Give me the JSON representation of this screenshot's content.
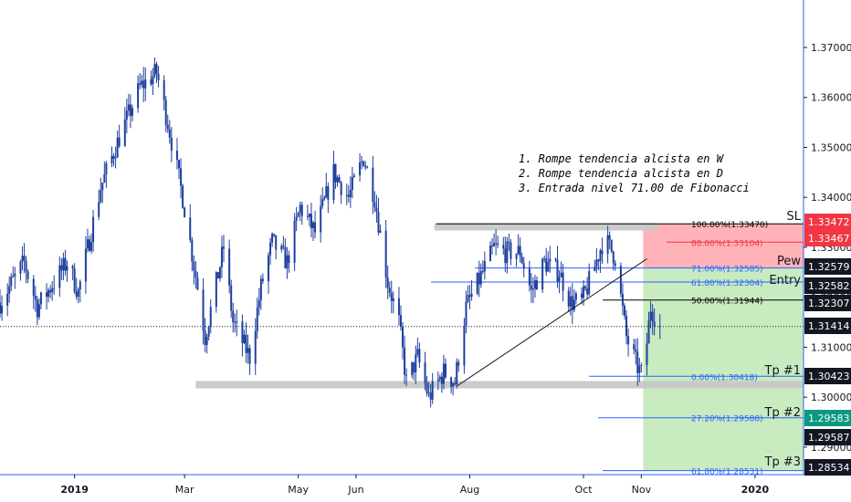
{
  "chart_data": {
    "type": "candlestick",
    "title": "",
    "ylim": [
      1.2845,
      1.3795
    ],
    "y_ticks": [
      "1.37000",
      "1.36000",
      "1.35000",
      "1.34000",
      "1.33000",
      "1.32000",
      "1.31000",
      "1.30000",
      "1.29000"
    ],
    "x_ticks": [
      "2019",
      "Mar",
      "May",
      "Jun",
      "Aug",
      "Oct",
      "Nov",
      "2020"
    ],
    "x_tick_dates": [
      "2019-01-01",
      "2019-03-01",
      "2019-05-01",
      "2019-06-01",
      "2019-08-01",
      "2019-10-01",
      "2019-11-01",
      "2020-01-01"
    ],
    "x_range": [
      "2018-11-22",
      "2020-01-27"
    ],
    "last_price": 1.31414,
    "price_path": [
      {
        "date": "2018-11-22",
        "price": 1.319
      },
      {
        "date": "2018-12-05",
        "price": 1.327
      },
      {
        "date": "2018-12-12",
        "price": 1.318
      },
      {
        "date": "2018-12-28",
        "price": 1.327
      },
      {
        "date": "2019-01-03",
        "price": 1.321
      },
      {
        "date": "2019-01-15",
        "price": 1.342
      },
      {
        "date": "2019-01-25",
        "price": 1.352
      },
      {
        "date": "2019-02-05",
        "price": 1.362
      },
      {
        "date": "2019-02-14",
        "price": 1.365
      },
      {
        "date": "2019-02-20",
        "price": 1.355
      },
      {
        "date": "2019-02-28",
        "price": 1.34
      },
      {
        "date": "2019-03-08",
        "price": 1.322
      },
      {
        "date": "2019-03-12",
        "price": 1.312
      },
      {
        "date": "2019-03-22",
        "price": 1.33
      },
      {
        "date": "2019-03-27",
        "price": 1.315
      },
      {
        "date": "2019-04-05",
        "price": 1.308
      },
      {
        "date": "2019-04-11",
        "price": 1.322
      },
      {
        "date": "2019-04-17",
        "price": 1.331
      },
      {
        "date": "2019-04-25",
        "price": 1.327
      },
      {
        "date": "2019-05-02",
        "price": 1.338
      },
      {
        "date": "2019-05-10",
        "price": 1.333
      },
      {
        "date": "2019-05-20",
        "price": 1.345
      },
      {
        "date": "2019-05-28",
        "price": 1.34
      },
      {
        "date": "2019-06-05",
        "price": 1.348
      },
      {
        "date": "2019-06-11",
        "price": 1.34
      },
      {
        "date": "2019-06-18",
        "price": 1.323
      },
      {
        "date": "2019-06-24",
        "price": 1.315
      },
      {
        "date": "2019-06-28",
        "price": 1.303
      },
      {
        "date": "2019-07-04",
        "price": 1.308
      },
      {
        "date": "2019-07-10",
        "price": 1.3
      },
      {
        "date": "2019-07-18",
        "price": 1.305
      },
      {
        "date": "2019-07-24",
        "price": 1.303
      },
      {
        "date": "2019-07-30",
        "price": 1.318
      },
      {
        "date": "2019-08-08",
        "price": 1.325
      },
      {
        "date": "2019-08-14",
        "price": 1.33
      },
      {
        "date": "2019-08-20",
        "price": 1.329
      },
      {
        "date": "2019-08-28",
        "price": 1.329
      },
      {
        "date": "2019-09-03",
        "price": 1.321
      },
      {
        "date": "2019-09-10",
        "price": 1.327
      },
      {
        "date": "2019-09-18",
        "price": 1.325
      },
      {
        "date": "2019-09-24",
        "price": 1.319
      },
      {
        "date": "2019-09-30",
        "price": 1.319
      },
      {
        "date": "2019-10-06",
        "price": 1.325
      },
      {
        "date": "2019-10-12",
        "price": 1.332
      },
      {
        "date": "2019-10-18",
        "price": 1.328
      },
      {
        "date": "2019-10-24",
        "price": 1.312
      },
      {
        "date": "2019-10-30",
        "price": 1.306
      },
      {
        "date": "2019-11-02",
        "price": 1.304
      },
      {
        "date": "2019-11-06",
        "price": 1.318
      },
      {
        "date": "2019-11-11",
        "price": 1.314
      }
    ],
    "levels": [
      {
        "price": 1.3347,
        "label": "100.00%(1.33470)",
        "color": "#000000"
      },
      {
        "price": 1.33104,
        "label": "88.00%(1.33104)",
        "color": "#f23645"
      },
      {
        "price": 1.32585,
        "label": "71.00%(1.32585)",
        "color": "#2962ff"
      },
      {
        "price": 1.32304,
        "label": "61.80%(1.32304)",
        "color": "#2962ff"
      },
      {
        "price": 1.31944,
        "label": "50.00%(1.31944)",
        "color": "#000000"
      },
      {
        "price": 1.30418,
        "label": "0.00%(1.30418)",
        "color": "#2962ff"
      },
      {
        "price": 1.29588,
        "label": "27.20%(1.29588)",
        "color": "#2962ff"
      },
      {
        "price": 1.28531,
        "label": "61.80%(1.28531)",
        "color": "#2962ff"
      }
    ],
    "price_tags": [
      {
        "text": "1.33472",
        "bg": "#f23645",
        "fg": "#ffffff",
        "tag": "SL"
      },
      {
        "text": "1.33467",
        "bg": "#f23645",
        "fg": "#ffffff",
        "tag": ""
      },
      {
        "text": "1.32579",
        "bg": "#131722",
        "fg": "#ffffff",
        "tag": "Pew"
      },
      {
        "text": "1.32582",
        "bg": "#131722",
        "fg": "#ffffff",
        "tag": "Entry"
      },
      {
        "text": "1.32307",
        "bg": "#131722",
        "fg": "#ffffff",
        "tag": ""
      },
      {
        "text": "1.31414",
        "bg": "#131722",
        "fg": "#ffffff",
        "tag": ""
      },
      {
        "text": "1.30423",
        "bg": "#131722",
        "fg": "#ffffff",
        "tag": "Tp #1"
      },
      {
        "text": "1.29583",
        "bg": "#089981",
        "fg": "#ffffff",
        "tag": "Tp #2"
      },
      {
        "text": "1.29587",
        "bg": "#131722",
        "fg": "#ffffff",
        "tag": ""
      },
      {
        "text": "1.28534",
        "bg": "#131722",
        "fg": "#ffffff",
        "tag": "Tp #3"
      }
    ],
    "position": {
      "entry": 1.32582,
      "stop": 1.33472,
      "target": 1.28534,
      "start": "2019-11-02",
      "end": "2020-01-27",
      "stop_color": "#ffb3b8",
      "target_color": "#c8ebc0"
    },
    "trendlines": [
      {
        "from": {
          "date": "2019-07-25",
          "price": 1.3022
        },
        "to": {
          "date": "2019-11-04",
          "price": 1.3277
        }
      }
    ],
    "zones": [
      {
        "from": "2019-07-13",
        "to": "2019-11-10",
        "price": 1.3341,
        "color": "#c8c8c8"
      },
      {
        "from": "2019-03-07",
        "to": "2020-01-27",
        "price": 1.3025,
        "color": "#c8c8c8"
      }
    ],
    "colors": {
      "candle": "#1e3f9e",
      "axis_text": "#131722",
      "background": "#ffffff"
    }
  },
  "annotations": [
    "1. Rompe tendencia alcista en W",
    "2. Rompe tendencia alcista en D",
    "3. Entrada nivel 71.00 de Fibonacci"
  ]
}
